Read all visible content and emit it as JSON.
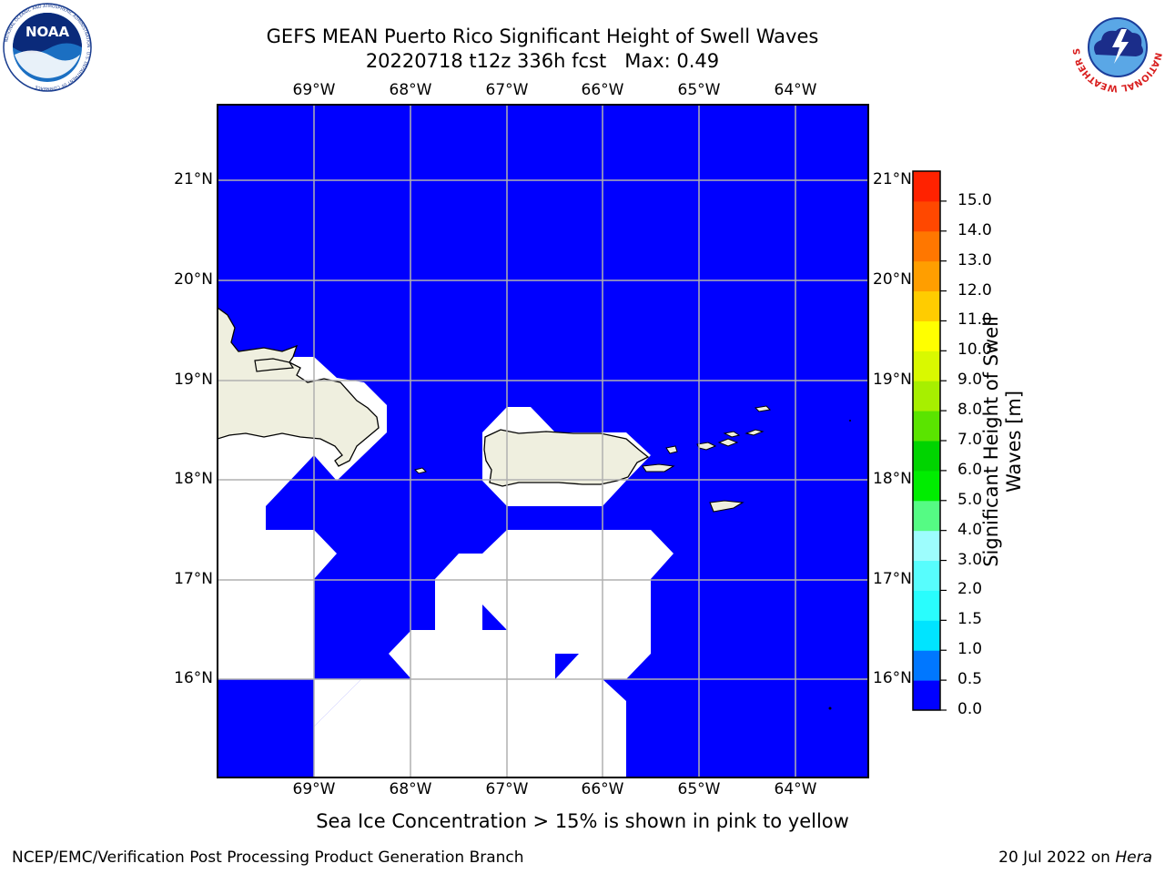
{
  "title": {
    "line1": "GEFS MEAN Puerto Rico Significant Height of Swell Waves",
    "line2": "20220718 t12z 336h fcst   Max: 0.49"
  },
  "logos": {
    "left": {
      "name": "noaa-logo",
      "text": "NOAA",
      "ring_text": "NATIONAL OCEANIC AND ATMOSPHERIC ADMINISTRATION · U.S. DEPARTMENT OF COMMERCE"
    },
    "right": {
      "name": "nws-logo",
      "ring_text": "NATIONAL WEATHER SERVICE"
    }
  },
  "map": {
    "lon_labels": [
      "69°W",
      "68°W",
      "67°W",
      "66°W",
      "65°W",
      "64°W"
    ],
    "lat_labels": [
      "21°N",
      "20°N",
      "19°N",
      "18°N",
      "17°N",
      "16°N"
    ],
    "colors": {
      "ocean": "#0000ff",
      "no_data": "#ffffff",
      "land": "#efefdf",
      "coastline": "#000000",
      "grid": "#b0b0b0"
    }
  },
  "colorbar": {
    "label_line1": "Significant Height of Swell",
    "label_line2": "Waves [m]",
    "ticks": [
      "0.0",
      "0.5",
      "1.0",
      "1.5",
      "2.0",
      "3.0",
      "4.0",
      "5.0",
      "6.0",
      "7.0",
      "8.0",
      "9.0",
      "10.0",
      "11.0",
      "12.0",
      "13.0",
      "14.0",
      "15.0"
    ],
    "colors": [
      "#0000ff",
      "#0077ff",
      "#00e4ff",
      "#29fdfd",
      "#57fdfd",
      "#9dfdfd",
      "#55fb84",
      "#00ed00",
      "#00d400",
      "#5ae400",
      "#a7ef00",
      "#d9f900",
      "#ffff00",
      "#ffcc00",
      "#ff9e00",
      "#ff7700",
      "#ff4800",
      "#ff2200"
    ]
  },
  "note": "Sea Ice Concentration > 15% is shown in pink to yellow",
  "footer": {
    "left": "NCEP/EMC/Verification Post Processing Product Generation Branch",
    "right_prefix": "20 Jul 2022 on ",
    "right_host": "Hera"
  }
}
